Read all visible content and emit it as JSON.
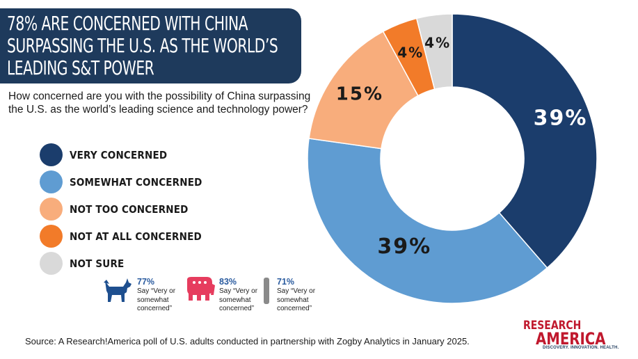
{
  "title": {
    "lines": [
      "78% ARE CONCERNED WITH CHINA",
      "SURPASSING THE U.S. AS THE WORLD’S",
      "LEADING S&T POWER"
    ]
  },
  "question": "How concerned are you with the possibility of China surpassing the U.S. as the world’s leading science and technology power?",
  "colors": {
    "very": "#1b3d6c",
    "somewhat": "#5f9cd2",
    "not_too": "#f8ad7c",
    "not_at_all": "#f27b29",
    "not_sure": "#d9d9d9",
    "banner": "#1e3a5c",
    "democrat": "#1e4f8f",
    "republican": "#e63c5e",
    "independent": "#8a8a8a"
  },
  "chart_data": {
    "type": "pie",
    "donut": true,
    "categories": [
      "VERY CONCERNED",
      "SOMEWHAT CONCERNED",
      "NOT TOO CONCERNED",
      "NOT AT ALL CONCERNED",
      "NOT SURE"
    ],
    "values": [
      39,
      39,
      15,
      4,
      4
    ],
    "labels": [
      "39%",
      "39%",
      "15%",
      "4%",
      "4%"
    ],
    "colors": [
      "#1b3d6c",
      "#5f9cd2",
      "#f8ad7c",
      "#f27b29",
      "#d9d9d9"
    ],
    "label_colors": [
      "#ffffff",
      "#1a1a1a",
      "#1a1a1a",
      "#1a1a1a",
      "#1a1a1a"
    ],
    "legend_placement": "left"
  },
  "party": [
    {
      "pct": "77%",
      "say": [
        "Say “Very or",
        "somewhat",
        "concerned”"
      ],
      "icon": "donkey-icon"
    },
    {
      "pct": "83%",
      "say": [
        "Say “Very or",
        "somewhat",
        "concerned”"
      ],
      "icon": "elephant-icon"
    },
    {
      "pct": "71%",
      "say": [
        "Say “Very or",
        "somewhat",
        "concerned”"
      ],
      "icon": "independent-bar-icon"
    }
  ],
  "source": "Source:  A Research!America poll of U.S. adults conducted in partnership with Zogby Analytics in January 2025.",
  "logo": {
    "line1": "RESEARCH",
    "line2": "AMERICA",
    "tagline": "DISCOVERY. INNOVATION. HEALTH."
  }
}
